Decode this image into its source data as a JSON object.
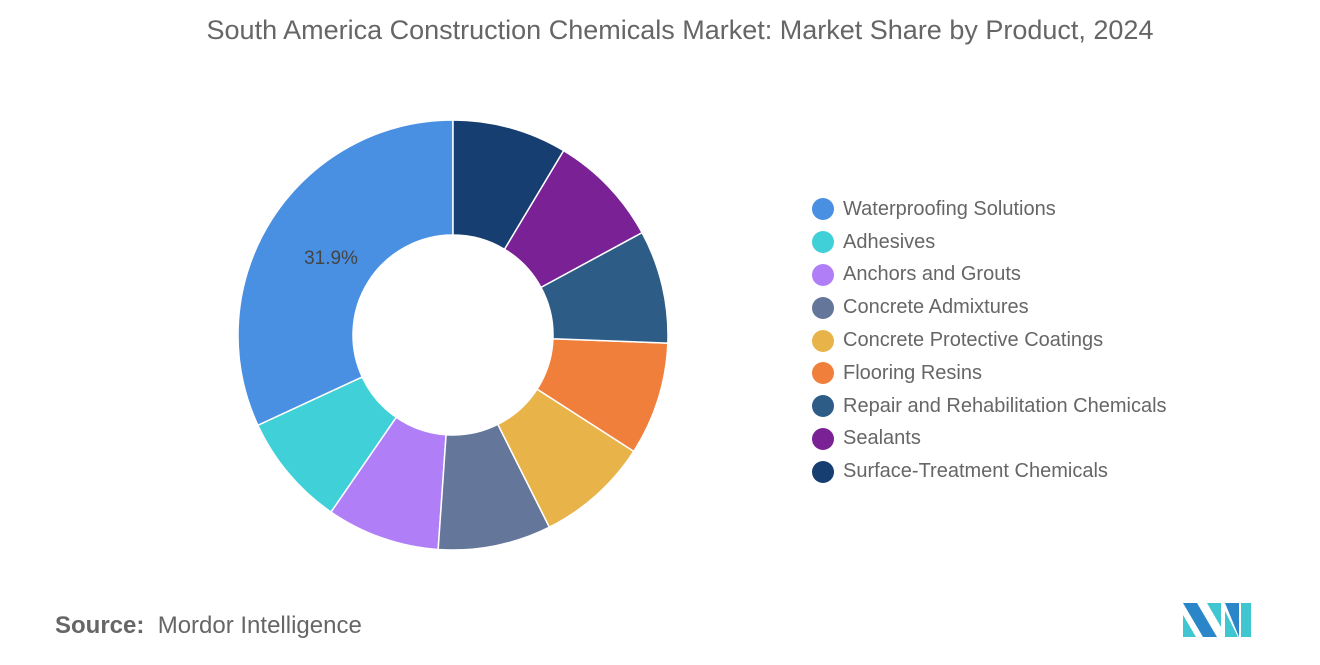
{
  "title": "South America Construction Chemicals Market: Market Share by Product, 2024",
  "source_label": "Source:",
  "source_value": "Mordor Intelligence",
  "logo_text": "Mordor Intelligence",
  "chart_data": {
    "type": "pie",
    "subtype": "donut",
    "title": "South America Construction Chemicals Market: Market Share by Product, 2024",
    "categories": [
      "Waterproofing Solutions",
      "Adhesives",
      "Anchors and Grouts",
      "Concrete Admixtures",
      "Concrete Protective Coatings",
      "Flooring Resins",
      "Repair and Rehabilitation Chemicals",
      "Sealants",
      "Surface-Treatment Chemicals"
    ],
    "values": [
      31.9,
      8.5,
      8.5,
      8.5,
      8.5,
      8.5,
      8.5,
      8.5,
      8.6
    ],
    "colors": [
      "#4a90e2",
      "#3fd0d8",
      "#b07ff8",
      "#64779a",
      "#e8b44a",
      "#f07f3c",
      "#2d5d86",
      "#7a2196",
      "#163e70"
    ],
    "labels_shown": [
      "31.9%"
    ],
    "legend_position": "right"
  }
}
